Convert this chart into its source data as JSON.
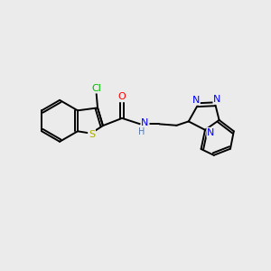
{
  "background_color": "#EBEBEB",
  "bond_color": "#000000",
  "atom_colors": {
    "Cl": "#00BB00",
    "S": "#AAAA00",
    "O": "#FF0000",
    "N": "#0000FF",
    "C": "#000000",
    "H": "#5577AA"
  },
  "figsize": [
    3.0,
    3.0
  ],
  "dpi": 100,
  "lw": 1.4
}
